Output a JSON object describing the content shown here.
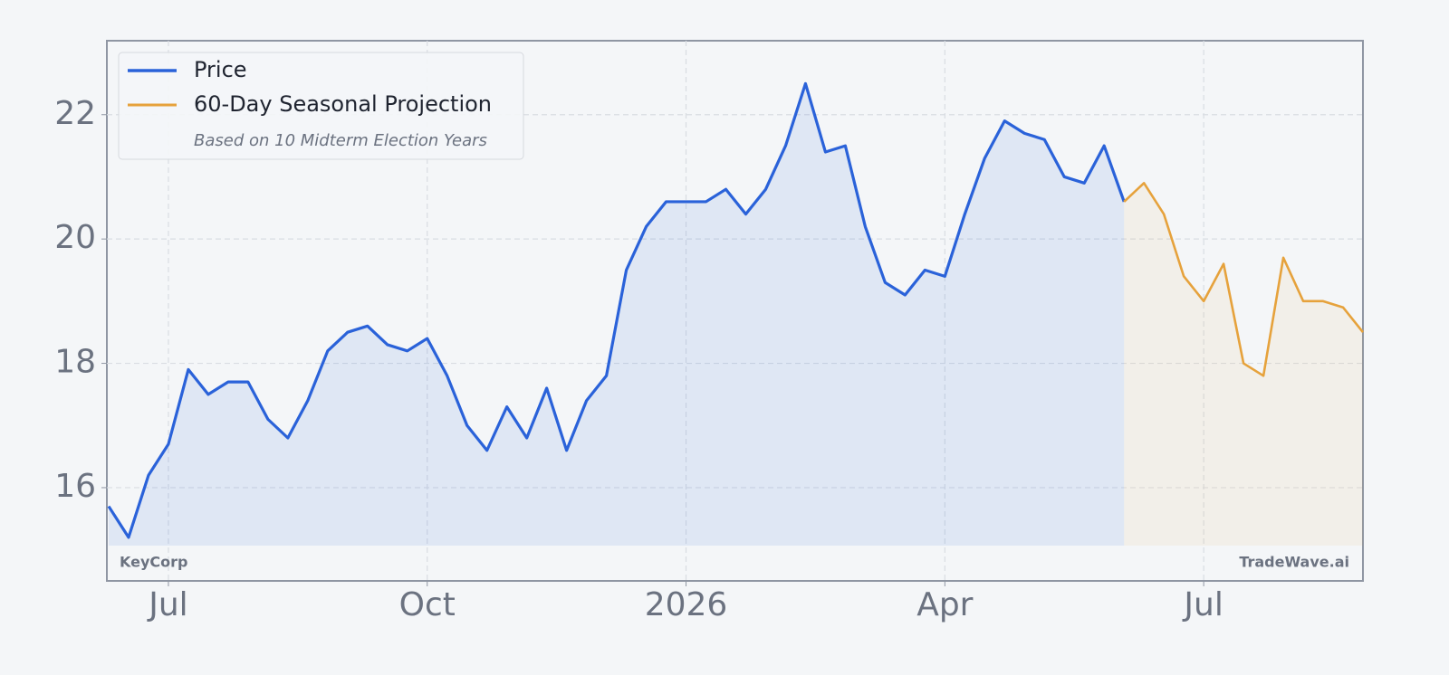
{
  "chart_data": {
    "type": "line",
    "categories": [
      null,
      null,
      null,
      "Jul",
      null,
      null,
      null,
      null,
      null,
      null,
      null,
      null,
      null,
      null,
      null,
      null,
      "Oct",
      null,
      null,
      null,
      null,
      null,
      null,
      null,
      null,
      null,
      null,
      null,
      null,
      "2026",
      null,
      null,
      null,
      null,
      null,
      null,
      null,
      null,
      null,
      null,
      null,
      null,
      "Apr",
      null,
      null,
      null,
      null,
      null,
      null,
      null,
      null,
      null,
      null,
      null,
      null,
      "Jul",
      null,
      null,
      null,
      null,
      null,
      null,
      null,
      null
    ],
    "series": [
      {
        "name": "Price",
        "color": "#2a62d9",
        "values": [
          15.7,
          15.2,
          16.2,
          16.7,
          17.9,
          17.5,
          17.7,
          17.7,
          17.1,
          16.8,
          17.4,
          18.2,
          18.5,
          18.6,
          18.3,
          18.2,
          18.4,
          17.8,
          17.0,
          16.6,
          17.3,
          16.8,
          17.6,
          16.6,
          17.4,
          17.8,
          19.5,
          20.2,
          20.6,
          20.6,
          20.6,
          20.8,
          20.4,
          20.8,
          21.5,
          22.5,
          21.4,
          21.5,
          20.2,
          19.3,
          19.1,
          19.5,
          19.4,
          20.4,
          21.3,
          21.9,
          21.7,
          21.6,
          21.0,
          20.9,
          21.5,
          20.6,
          null,
          null,
          null,
          null,
          null,
          null,
          null,
          null,
          null,
          null,
          null,
          null
        ]
      },
      {
        "name": "60-Day Seasonal Projection",
        "color": "#e6a23c",
        "values": [
          null,
          null,
          null,
          null,
          null,
          null,
          null,
          null,
          null,
          null,
          null,
          null,
          null,
          null,
          null,
          null,
          null,
          null,
          null,
          null,
          null,
          null,
          null,
          null,
          null,
          null,
          null,
          null,
          null,
          null,
          null,
          null,
          null,
          null,
          null,
          null,
          null,
          null,
          null,
          null,
          null,
          null,
          null,
          null,
          null,
          null,
          null,
          null,
          null,
          null,
          null,
          20.6,
          20.9,
          20.4,
          19.4,
          19.0,
          19.6,
          18.0,
          17.8,
          19.7,
          19.0,
          19.0,
          18.9,
          18.5
        ]
      }
    ],
    "legend_note": "Based on 10 Midterm Election Years",
    "annotations": [
      "KeyCorp",
      "TradeWave.ai"
    ],
    "ylim": [
      14.5,
      23.19
    ],
    "yticks": [
      16,
      18,
      20,
      22
    ],
    "grid": true,
    "legend": "upper left"
  }
}
